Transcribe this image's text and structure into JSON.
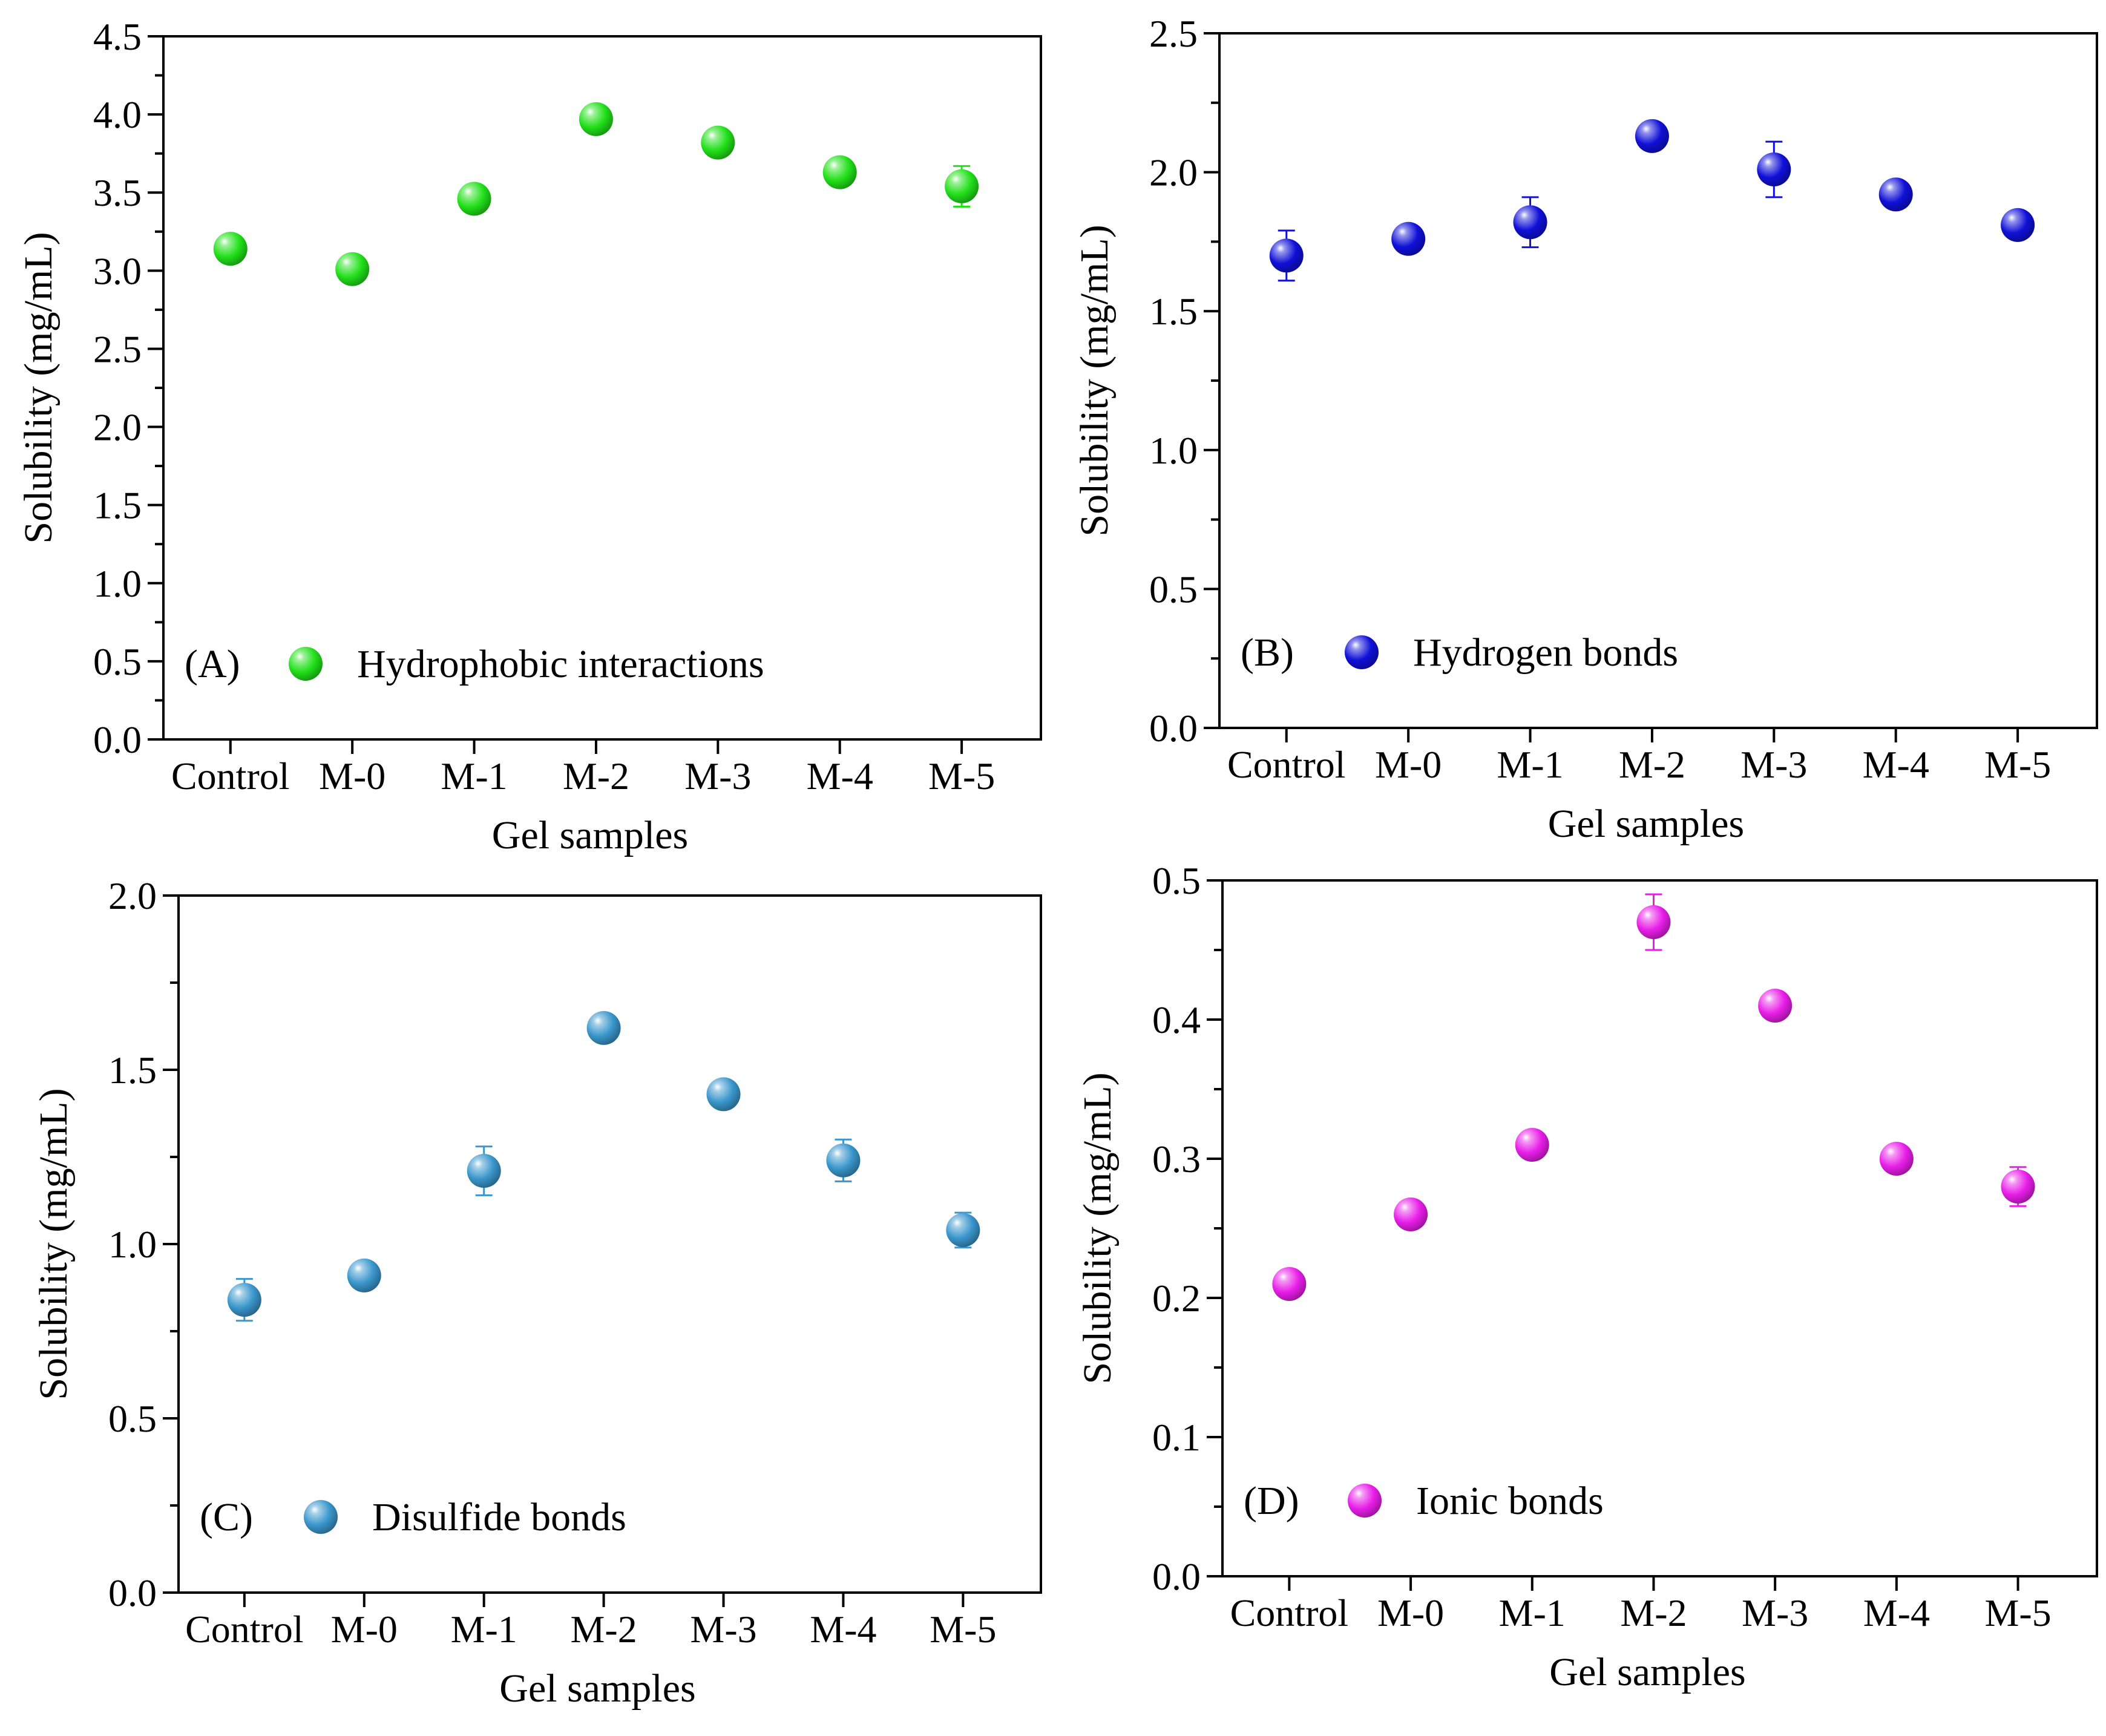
{
  "chart_data": [
    {
      "id": "A",
      "type": "scatter",
      "panel_label": "(A)",
      "legend": "Hydrophobic interactions",
      "color": "#22e01a",
      "xlabel": "Gel samples",
      "ylabel": "Solubility (mg/mL)",
      "categories": [
        "Control",
        "M-0",
        "M-1",
        "M-2",
        "M-3",
        "M-4",
        "M-5"
      ],
      "values": [
        3.14,
        3.01,
        3.46,
        3.97,
        3.82,
        3.63,
        3.54
      ],
      "errors": [
        0.03,
        0.07,
        0.03,
        0.04,
        0.03,
        0.05,
        0.13
      ],
      "ylim": [
        0,
        4.5
      ],
      "yticks": [
        0.0,
        0.5,
        1.0,
        1.5,
        2.0,
        2.5,
        3.0,
        3.5,
        4.0,
        4.5
      ],
      "ytick_labels": [
        "0.0",
        "0.5",
        "1.0",
        "1.5",
        "2.0",
        "2.5",
        "3.0",
        "3.5",
        "4.0",
        "4.5"
      ],
      "legend_position": "bottom-left"
    },
    {
      "id": "B",
      "type": "scatter",
      "panel_label": "(B)",
      "legend": "Hydrogen bonds",
      "color": "#1010d8",
      "xlabel": "Gel samples",
      "ylabel": "Solubility (mg/mL)",
      "categories": [
        "Control",
        "M-0",
        "M-1",
        "M-2",
        "M-3",
        "M-4",
        "M-5"
      ],
      "values": [
        1.7,
        1.76,
        1.82,
        2.13,
        2.01,
        1.92,
        1.81
      ],
      "errors": [
        0.09,
        0.02,
        0.09,
        0.02,
        0.1,
        0.03,
        0.02
      ],
      "ylim": [
        0,
        2.5
      ],
      "yticks": [
        0.0,
        0.5,
        1.0,
        1.5,
        2.0,
        2.5
      ],
      "ytick_labels": [
        "0.0",
        "0.5",
        "1.0",
        "1.5",
        "2.0",
        "2.5"
      ],
      "legend_position": "bottom-left"
    },
    {
      "id": "C",
      "type": "scatter",
      "panel_label": "(C)",
      "legend": "Disulfide bonds",
      "color": "#3a96cc",
      "xlabel": "Gel samples",
      "ylabel": "Solubility (mg/mL)",
      "categories": [
        "Control",
        "M-0",
        "M-1",
        "M-2",
        "M-3",
        "M-4",
        "M-5"
      ],
      "values": [
        0.84,
        0.91,
        1.21,
        1.62,
        1.43,
        1.24,
        1.04
      ],
      "errors": [
        0.06,
        0.02,
        0.07,
        0.04,
        0.02,
        0.06,
        0.05
      ],
      "ylim": [
        0,
        2.0
      ],
      "yticks": [
        0.0,
        0.5,
        1.0,
        1.5,
        2.0
      ],
      "ytick_labels": [
        "0.0",
        "0.5",
        "1.0",
        "1.5",
        "2.0"
      ],
      "legend_position": "bottom-left"
    },
    {
      "id": "D",
      "type": "scatter",
      "panel_label": "(D)",
      "legend": "Ionic bonds",
      "color": "#e81ee8",
      "xlabel": "Gel samples",
      "ylabel": "Solubility (mg/mL)",
      "categories": [
        "Control",
        "M-0",
        "M-1",
        "M-2",
        "M-3",
        "M-4",
        "M-5"
      ],
      "values": [
        0.21,
        0.26,
        0.31,
        0.47,
        0.41,
        0.3,
        0.28
      ],
      "errors": [
        0.005,
        0.005,
        0.005,
        0.02,
        0.01,
        0.005,
        0.014
      ],
      "ylim": [
        0,
        0.5
      ],
      "yticks": [
        0.0,
        0.1,
        0.2,
        0.3,
        0.4,
        0.5
      ],
      "ytick_labels": [
        "0.0",
        "0.1",
        "0.2",
        "0.3",
        "0.4",
        "0.5"
      ],
      "legend_position": "bottom-left"
    }
  ]
}
